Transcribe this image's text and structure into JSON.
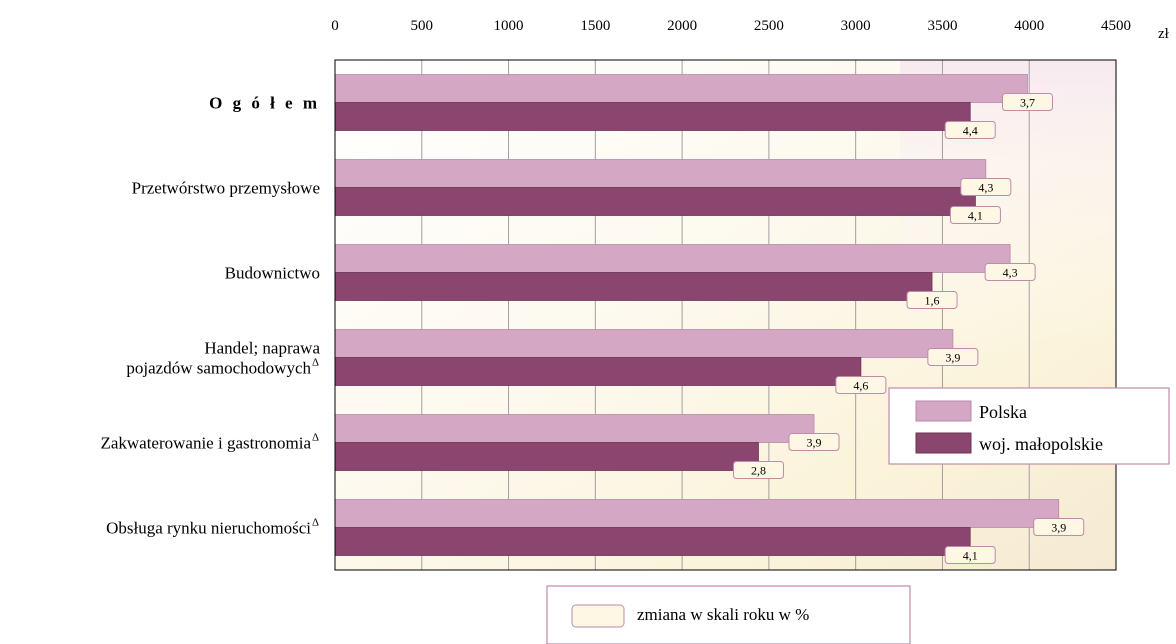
{
  "chart_data": {
    "type": "bar",
    "orientation": "horizontal",
    "unit": "zł",
    "xlim": [
      0,
      4500
    ],
    "x_ticks": [
      "0",
      "500",
      "1000",
      "1500",
      "2000",
      "2500",
      "3000",
      "3500",
      "4000",
      "4500"
    ],
    "grid": true,
    "categories": [
      "O g ó ł e m",
      "Przetwórstwo przemysłowe",
      "Budownictwo",
      "Handel; naprawa|pojazdów samochodowych",
      "Zakwaterowanie i gastronomia",
      "Obsługa rynku nieruchomości"
    ],
    "category_marks": [
      "",
      "",
      "",
      "Δ",
      "Δ",
      "Δ"
    ],
    "series": [
      {
        "name": "Polska",
        "color": "#d4a7c4",
        "values": [
          3990,
          3750,
          3890,
          3560,
          2760,
          4170
        ],
        "change_labels": [
          "3,7",
          "4,3",
          "4,3",
          "3,9",
          "3,9",
          "3,9"
        ]
      },
      {
        "name": "woj. małopolskie",
        "color": "#8b4670",
        "values": [
          3660,
          3690,
          3440,
          3030,
          2440,
          3660
        ],
        "change_labels": [
          "4,4",
          "4,1",
          "1,6",
          "4,6",
          "2,8",
          "4,1"
        ]
      }
    ],
    "legend": {
      "position": "right"
    },
    "change_legend_label": "zmiana w skali roku w %"
  }
}
